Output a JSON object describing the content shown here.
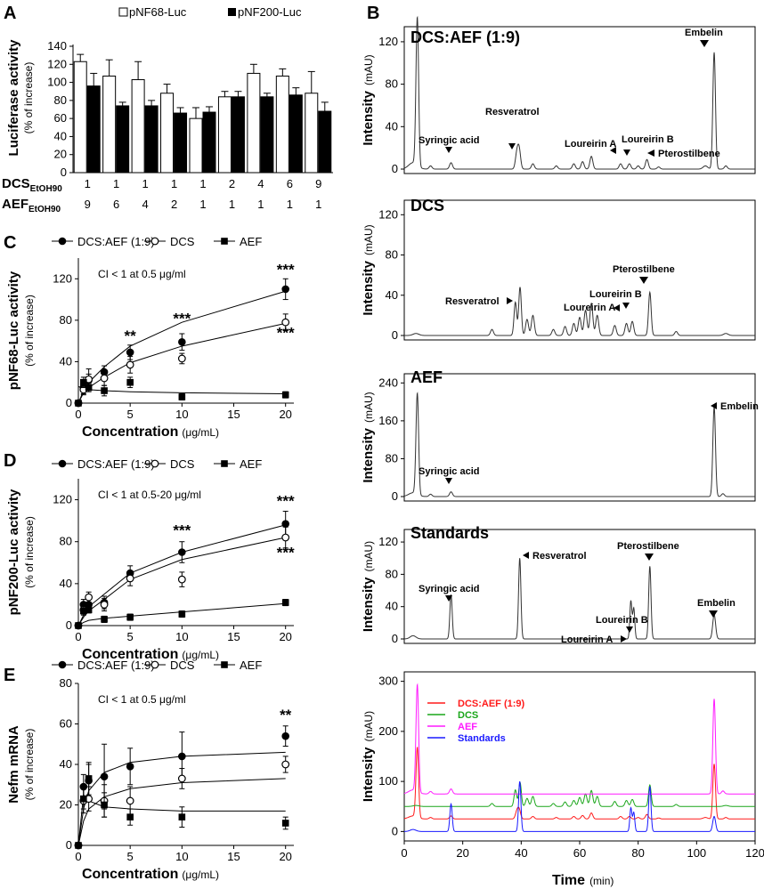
{
  "panels": {
    "A": "A",
    "B": "B",
    "C": "C",
    "D": "D",
    "E": "E"
  },
  "chart_data": [
    {
      "id": "A",
      "type": "bar",
      "legend": [
        "pNF68-Luc",
        "pNF200-Luc"
      ],
      "ylabel_main": "Luciferase activity",
      "ylabel_sub": "(% of increase)",
      "ylim": [
        0,
        140
      ],
      "yticks": [
        "0",
        "20",
        "40",
        "60",
        "80",
        "100",
        "120",
        "140"
      ],
      "row1_label": "DCS",
      "row1_sub": "EtOH90",
      "row2_label": "AEF",
      "row2_sub": "EtOH90",
      "dcs_ratio": [
        "1",
        "1",
        "1",
        "1",
        "1",
        "2",
        "4",
        "6",
        "9"
      ],
      "aef_ratio": [
        "9",
        "6",
        "4",
        "2",
        "1",
        "1",
        "1",
        "1",
        "1"
      ],
      "series": [
        {
          "name": "pNF68-Luc",
          "values": [
            123,
            107,
            103,
            88,
            60,
            84,
            110,
            107,
            88
          ],
          "errors": [
            8,
            18,
            20,
            10,
            12,
            6,
            10,
            8,
            24
          ]
        },
        {
          "name": "pNF200-Luc",
          "values": [
            96,
            74,
            74,
            66,
            67,
            84,
            84,
            86,
            68
          ],
          "errors": [
            14,
            4,
            6,
            6,
            6,
            6,
            4,
            8,
            10
          ]
        }
      ]
    },
    {
      "id": "B",
      "type": "line",
      "xlabel": "Time",
      "xunit": "(min)",
      "ylabel_main": "Intensity",
      "ylabel_unit": "(mAU)",
      "xlim": [
        0,
        120
      ],
      "xticks": [
        "0",
        "20",
        "40",
        "60",
        "80",
        "100",
        "120"
      ],
      "subplots": [
        {
          "title": "DCS:AEF (1:9)",
          "ylim": [
            0,
            130
          ],
          "yticks": [
            "0",
            "40",
            "80",
            "120"
          ],
          "peaks": [
            [
              3,
              6,
              1.5
            ],
            [
              4.2,
              60,
              0.4
            ],
            [
              4.6,
              97,
              0.4
            ],
            [
              9,
              3,
              0.5
            ],
            [
              16,
              6,
              0.5
            ],
            [
              38.5,
              14,
              0.5
            ],
            [
              39.3,
              18,
              0.5
            ],
            [
              44,
              5,
              0.5
            ],
            [
              52,
              3,
              0.5
            ],
            [
              58,
              5,
              0.5
            ],
            [
              61,
              7,
              0.5
            ],
            [
              64,
              12,
              0.5
            ],
            [
              74,
              5,
              0.5
            ],
            [
              77,
              5,
              0.5
            ],
            [
              80,
              3,
              0.5
            ],
            [
              83,
              9,
              0.5
            ],
            [
              87,
              2,
              0.5
            ],
            [
              103,
              3,
              0.8
            ],
            [
              106,
              110,
              0.45
            ],
            [
              110,
              3,
              0.5
            ]
          ],
          "labels": [
            "Syringic acid",
            "Resveratrol",
            "Loureirin A",
            "Loureirin B",
            "Pterostilbene",
            "Embelin"
          ]
        },
        {
          "title": "DCS",
          "ylim": [
            0,
            130
          ],
          "yticks": [
            "0",
            "40",
            "80",
            "120"
          ],
          "peaks": [
            [
              4,
              2,
              1
            ],
            [
              30,
              6,
              0.5
            ],
            [
              38,
              33,
              0.45
            ],
            [
              39.6,
              48,
              0.45
            ],
            [
              42,
              16,
              0.5
            ],
            [
              44,
              20,
              0.5
            ],
            [
              51,
              6,
              0.5
            ],
            [
              55,
              9,
              0.5
            ],
            [
              58,
              12,
              0.5
            ],
            [
              60,
              18,
              0.5
            ],
            [
              62,
              25,
              0.5
            ],
            [
              64,
              32,
              0.5
            ],
            [
              66,
              20,
              0.5
            ],
            [
              72,
              10,
              0.5
            ],
            [
              76,
              12,
              0.5
            ],
            [
              78,
              14,
              0.5
            ],
            [
              84,
              43,
              0.45
            ],
            [
              93,
              4,
              0.5
            ],
            [
              110,
              2,
              0.8
            ]
          ],
          "labels": [
            "Resveratrol",
            "Loureirin A",
            "Loureirin B",
            "Pterostilbene"
          ]
        },
        {
          "title": "AEF",
          "ylim": [
            0,
            250
          ],
          "yticks": [
            "0",
            "80",
            "160",
            "240"
          ],
          "peaks": [
            [
              3,
              8,
              1.5
            ],
            [
              4.2,
              90,
              0.4
            ],
            [
              4.6,
              150,
              0.4
            ],
            [
              9,
              5,
              0.5
            ],
            [
              16,
              10,
              0.5
            ],
            [
              106,
              190,
              0.45
            ],
            [
              109,
              6,
              0.5
            ]
          ],
          "labels": [
            "Syringic acid",
            "Embelin"
          ]
        },
        {
          "title": "Standards",
          "ylim": [
            0,
            130
          ],
          "yticks": [
            "0",
            "40",
            "80",
            "120"
          ],
          "peaks": [
            [
              3,
              4,
              1
            ],
            [
              16,
              55,
              0.4
            ],
            [
              39.5,
              100,
              0.4
            ],
            [
              77.5,
              47,
              0.35
            ],
            [
              78.5,
              38,
              0.35
            ],
            [
              84,
              90,
              0.4
            ],
            [
              106,
              30,
              0.5
            ]
          ],
          "labels": [
            "Syringic acid",
            "Resveratrol",
            "Loureirin A",
            "Loureirin B",
            "Pterostilbene",
            "Embelin"
          ]
        },
        {
          "title": "",
          "ylim": [
            -10,
            310
          ],
          "yticks": [
            "0",
            "100",
            "200",
            "300"
          ],
          "overlay": [
            {
              "name": "DCS:AEF (1:9)",
              "color": "#ff1a1a",
              "offset": 25
            },
            {
              "name": "DCS",
              "color": "#1aa61a",
              "offset": 50
            },
            {
              "name": "AEF",
              "color": "#ff1aff",
              "offset": 75
            },
            {
              "name": "Standards",
              "color": "#1a1aff",
              "offset": 0
            }
          ]
        }
      ]
    },
    {
      "id": "C",
      "type": "scatter",
      "ylabel_main": "pNF68-Luc activity",
      "ylabel_sub": "(% of increase)",
      "xlabel": "Concentration",
      "xunit": "(μg/mL)",
      "xlim": [
        0,
        20.8
      ],
      "ylim": [
        0,
        140
      ],
      "xticks": [
        "0",
        "5",
        "10",
        "15",
        "20"
      ],
      "yticks": [
        "0",
        "40",
        "80",
        "120"
      ],
      "ci_text": "CI < 1 at 0.5 μg/ml",
      "legend": [
        "DCS:AEF (1:9)",
        "DCS",
        "AEF"
      ],
      "series": [
        {
          "name": "DCS:AEF (1:9)",
          "marker": "filled-circle",
          "x": [
            0,
            0.5,
            1,
            2.5,
            5,
            10,
            20
          ],
          "y": [
            0,
            15,
            22,
            30,
            49,
            59,
            110
          ],
          "err": [
            0,
            6,
            6,
            6,
            7,
            8,
            10
          ],
          "fit": [
            0,
            12,
            20,
            35,
            55,
            78,
            108
          ]
        },
        {
          "name": "DCS",
          "marker": "open-circle",
          "x": [
            0,
            0.5,
            1,
            2.5,
            5,
            10,
            20
          ],
          "y": [
            0,
            13,
            23,
            24,
            37,
            43,
            78
          ],
          "err": [
            0,
            5,
            10,
            7,
            8,
            5,
            8
          ],
          "fit": [
            0,
            10,
            15,
            25,
            39,
            55,
            77
          ]
        },
        {
          "name": "AEF",
          "marker": "filled-square",
          "x": [
            0,
            0.5,
            1,
            2.5,
            5,
            10,
            20
          ],
          "y": [
            0,
            20,
            15,
            12,
            20,
            6,
            8
          ],
          "err": [
            0,
            5,
            4,
            5,
            5,
            3,
            3
          ],
          "fit": [
            16,
            14,
            13,
            12,
            11,
            10,
            9
          ]
        }
      ],
      "stars": [
        {
          "x": 5,
          "y": 60,
          "t": "**"
        },
        {
          "x": 10,
          "y": 77,
          "t": "***"
        },
        {
          "x": 20,
          "y": 124,
          "t": "***"
        },
        {
          "x": 20,
          "y": 63,
          "t": "***"
        }
      ]
    },
    {
      "id": "D",
      "type": "scatter",
      "ylabel_main": "pNF200-Luc activity",
      "ylabel_sub": "(% of increase)",
      "xlabel": "Concentration",
      "xunit": "(μg/mL)",
      "xlim": [
        0,
        20.8
      ],
      "ylim": [
        0,
        140
      ],
      "xticks": [
        "0",
        "5",
        "10",
        "15",
        "20"
      ],
      "yticks": [
        "0",
        "40",
        "80",
        "120"
      ],
      "ci_text": "CI < 1 at 0.5-20 μg/ml",
      "legend": [
        "DCS:AEF (1:9)",
        "DCS",
        "AEF"
      ],
      "series": [
        {
          "name": "DCS:AEF (1:9)",
          "marker": "filled-circle",
          "x": [
            0,
            0.5,
            1,
            2.5,
            5,
            10,
            20
          ],
          "y": [
            0,
            20,
            20,
            22,
            50,
            70,
            97
          ],
          "err": [
            0,
            5,
            5,
            6,
            7,
            10,
            12
          ],
          "fit": [
            0,
            10,
            18,
            30,
            50,
            70,
            96
          ]
        },
        {
          "name": "DCS",
          "marker": "open-circle",
          "x": [
            0,
            0.5,
            1,
            2.5,
            5,
            10,
            20
          ],
          "y": [
            0,
            15,
            27,
            20,
            45,
            44,
            84
          ],
          "err": [
            0,
            4,
            5,
            6,
            7,
            7,
            10
          ],
          "fit": [
            0,
            8,
            14,
            25,
            44,
            63,
            84
          ]
        },
        {
          "name": "AEF",
          "marker": "filled-square",
          "x": [
            0,
            0.5,
            1,
            2.5,
            5,
            10,
            20
          ],
          "y": [
            0,
            14,
            15,
            6,
            8,
            11,
            22
          ],
          "err": [
            0,
            4,
            3,
            3,
            3,
            3,
            3
          ],
          "fit": [
            0,
            3,
            5,
            7,
            9,
            13,
            21
          ]
        }
      ],
      "stars": [
        {
          "x": 10,
          "y": 86,
          "t": "***"
        },
        {
          "x": 20,
          "y": 114,
          "t": "***"
        },
        {
          "x": 20,
          "y": 65,
          "t": "***"
        }
      ]
    },
    {
      "id": "E",
      "type": "scatter",
      "ylabel_main": "Nefm mRNA",
      "ylabel_sub": "(% of increase)",
      "xlabel": "Concentration",
      "xunit": "(μg/mL)",
      "xlim": [
        0,
        20.8
      ],
      "ylim": [
        0,
        80
      ],
      "xticks": [
        "0",
        "5",
        "10",
        "15",
        "20"
      ],
      "yticks": [
        "0",
        "20",
        "40",
        "60",
        "80"
      ],
      "ci_text": "CI < 1 at 0.5 μg/ml",
      "legend": [
        "DCS:AEF (1:9)",
        "DCS",
        "AEF"
      ],
      "series": [
        {
          "name": "DCS:AEF (1:9)",
          "marker": "filled-circle",
          "x": [
            0,
            0.5,
            1,
            2.5,
            5,
            10,
            20
          ],
          "y": [
            0,
            29,
            32,
            34,
            39,
            44,
            54
          ],
          "err": [
            0,
            6,
            8,
            16,
            9,
            12,
            5
          ],
          "fit": [
            0,
            18,
            27,
            36,
            41,
            44,
            46
          ]
        },
        {
          "name": "DCS",
          "marker": "open-circle",
          "x": [
            0,
            0.5,
            1,
            2.5,
            5,
            10,
            20
          ],
          "y": [
            0,
            22,
            23,
            22,
            22,
            33,
            40
          ],
          "err": [
            0,
            6,
            6,
            8,
            7,
            5,
            4
          ],
          "fit": [
            0,
            12,
            18,
            24,
            28,
            31,
            33
          ]
        },
        {
          "name": "AEF",
          "marker": "filled-square",
          "x": [
            0,
            0.5,
            1,
            2.5,
            5,
            10,
            20
          ],
          "y": [
            0,
            23,
            33,
            20,
            14,
            14,
            11
          ],
          "err": [
            0,
            5,
            8,
            6,
            4,
            5,
            3
          ],
          "fit": [
            0,
            25,
            22,
            19,
            18,
            17,
            17
          ]
        }
      ],
      "stars": [
        {
          "x": 20,
          "y": 62,
          "t": "**"
        }
      ]
    }
  ]
}
